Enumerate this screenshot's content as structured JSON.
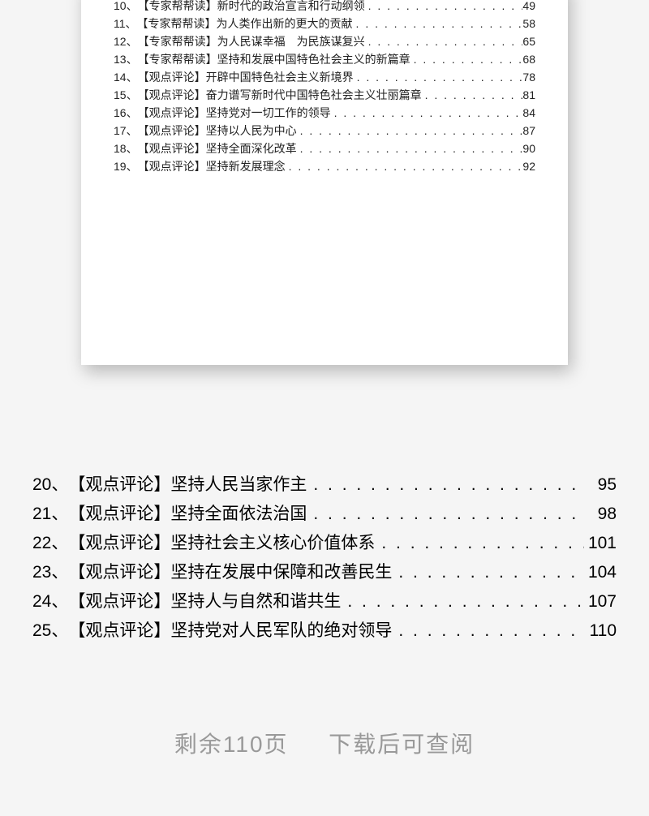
{
  "upper_toc": [
    {
      "num": "10、",
      "title": "【专家帮帮读】新时代的政治宣言和行动纲领",
      "page": "49"
    },
    {
      "num": "11、",
      "title": "【专家帮帮读】为人类作出新的更大的贡献",
      "page": "58"
    },
    {
      "num": "12、",
      "title": "【专家帮帮读】为人民谋幸福　为民族谋复兴",
      "page": "65"
    },
    {
      "num": "13、",
      "title": "【专家帮帮读】坚持和发展中国特色社会主义的新篇章",
      "page": "68"
    },
    {
      "num": "14、",
      "title": "【观点评论】开辟中国特色社会主义新境界",
      "page": "78"
    },
    {
      "num": "15、",
      "title": "【观点评论】奋力谱写新时代中国特色社会主义壮丽篇章",
      "page": "81"
    },
    {
      "num": "16、",
      "title": "【观点评论】坚持党对一切工作的领导",
      "page": "84"
    },
    {
      "num": "17、",
      "title": "【观点评论】坚持以人民为中心",
      "page": "87"
    },
    {
      "num": "18、",
      "title": "【观点评论】坚持全面深化改革",
      "page": "90"
    },
    {
      "num": "19、",
      "title": "【观点评论】坚持新发展理念",
      "page": "92"
    }
  ],
  "lower_toc": [
    {
      "num": "20、",
      "title": "【观点评论】坚持人民当家作主",
      "page": "95"
    },
    {
      "num": "21、",
      "title": "【观点评论】坚持全面依法治国",
      "page": "98"
    },
    {
      "num": "22、",
      "title": "【观点评论】坚持社会主义核心价值体系",
      "page": "101"
    },
    {
      "num": "23、",
      "title": "【观点评论】坚持在发展中保障和改善民生",
      "page": "104"
    },
    {
      "num": "24、",
      "title": "【观点评论】坚持人与自然和谐共生",
      "page": "107"
    },
    {
      "num": "25、",
      "title": "【观点评论】坚持党对人民军队的绝对领导",
      "page": "110"
    }
  ],
  "footer": {
    "remaining": "剩余110页",
    "hint": "下载后可查阅"
  },
  "style": {
    "page_bg": "#f5f5f5",
    "preview_bg": "#ffffff",
    "text_color": "#222222",
    "footer_color": "#999999",
    "small_fontsize": 14,
    "large_fontsize": 21,
    "footer_fontsize": 28
  },
  "dots": ". . . . . . . . . . . . . . . . . . . . . . . . . . . . . . . . . . . . . . . . . . . . . . . . . . . . . . . . . . . ."
}
